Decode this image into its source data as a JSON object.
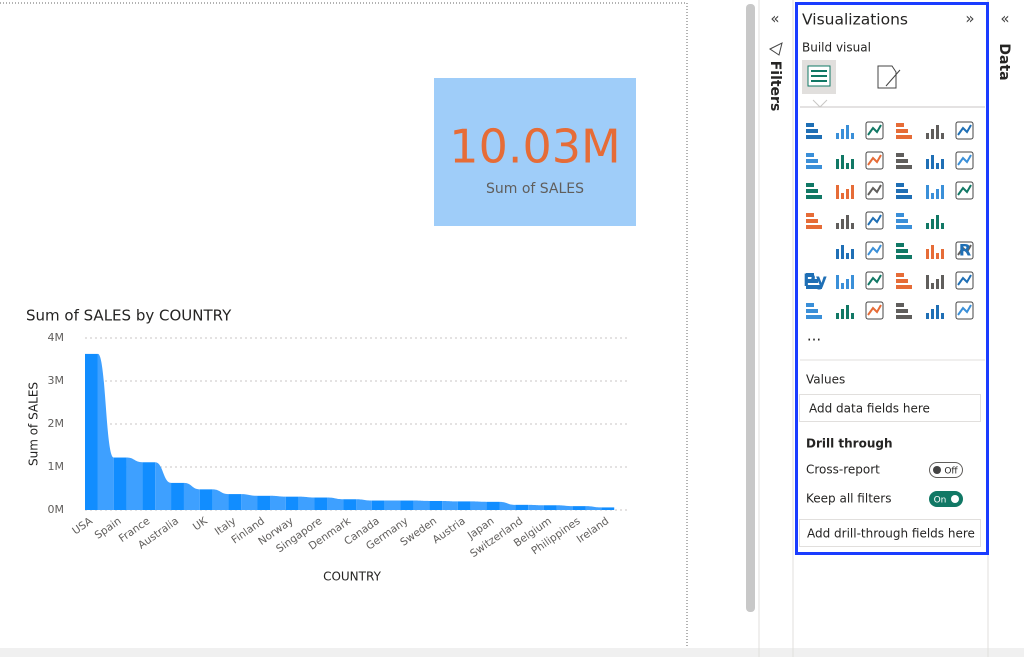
{
  "card": {
    "value": "10.03M",
    "label": "Sum of SALES"
  },
  "chart_data": {
    "type": "ribbon",
    "title": "Sum of SALES by COUNTRY",
    "x_label": "COUNTRY",
    "y_label": "Sum of SALES",
    "categories": [
      "USA",
      "Spain",
      "France",
      "Australia",
      "UK",
      "Italy",
      "Finland",
      "Norway",
      "Singapore",
      "Denmark",
      "Canada",
      "Germany",
      "Sweden",
      "Austria",
      "Japan",
      "Switzerland",
      "Belgium",
      "Philippines",
      "Ireland"
    ],
    "values": [
      3630000,
      1220000,
      1110000,
      630000,
      480000,
      370000,
      330000,
      310000,
      290000,
      250000,
      220000,
      220000,
      210000,
      200000,
      190000,
      120000,
      110000,
      90000,
      60000
    ],
    "color": "#118dff",
    "ylim": [
      0,
      4000000
    ],
    "yticks": [
      {
        "value": 0,
        "label": "0M"
      },
      {
        "value": 1000000,
        "label": "1M"
      },
      {
        "value": 2000000,
        "label": "2M"
      },
      {
        "value": 3000000,
        "label": "3M"
      },
      {
        "value": 4000000,
        "label": "4M"
      }
    ],
    "grid": true
  },
  "filters_pane": {
    "title": "Filters"
  },
  "data_pane": {
    "title": "Data"
  },
  "viz_pane": {
    "title": "Visualizations",
    "build_visual": "Build visual",
    "py_icon": "Py",
    "r_icon": "R",
    "more": "...",
    "values_section": "Values",
    "values_placeholder": "Add data fields here",
    "drill_through": "Drill through",
    "cross_report": "Cross-report",
    "cross_report_state": "Off",
    "keep_all_filters": "Keep all filters",
    "keep_all_filters_state": "On",
    "drill_placeholder": "Add drill-through fields here"
  }
}
